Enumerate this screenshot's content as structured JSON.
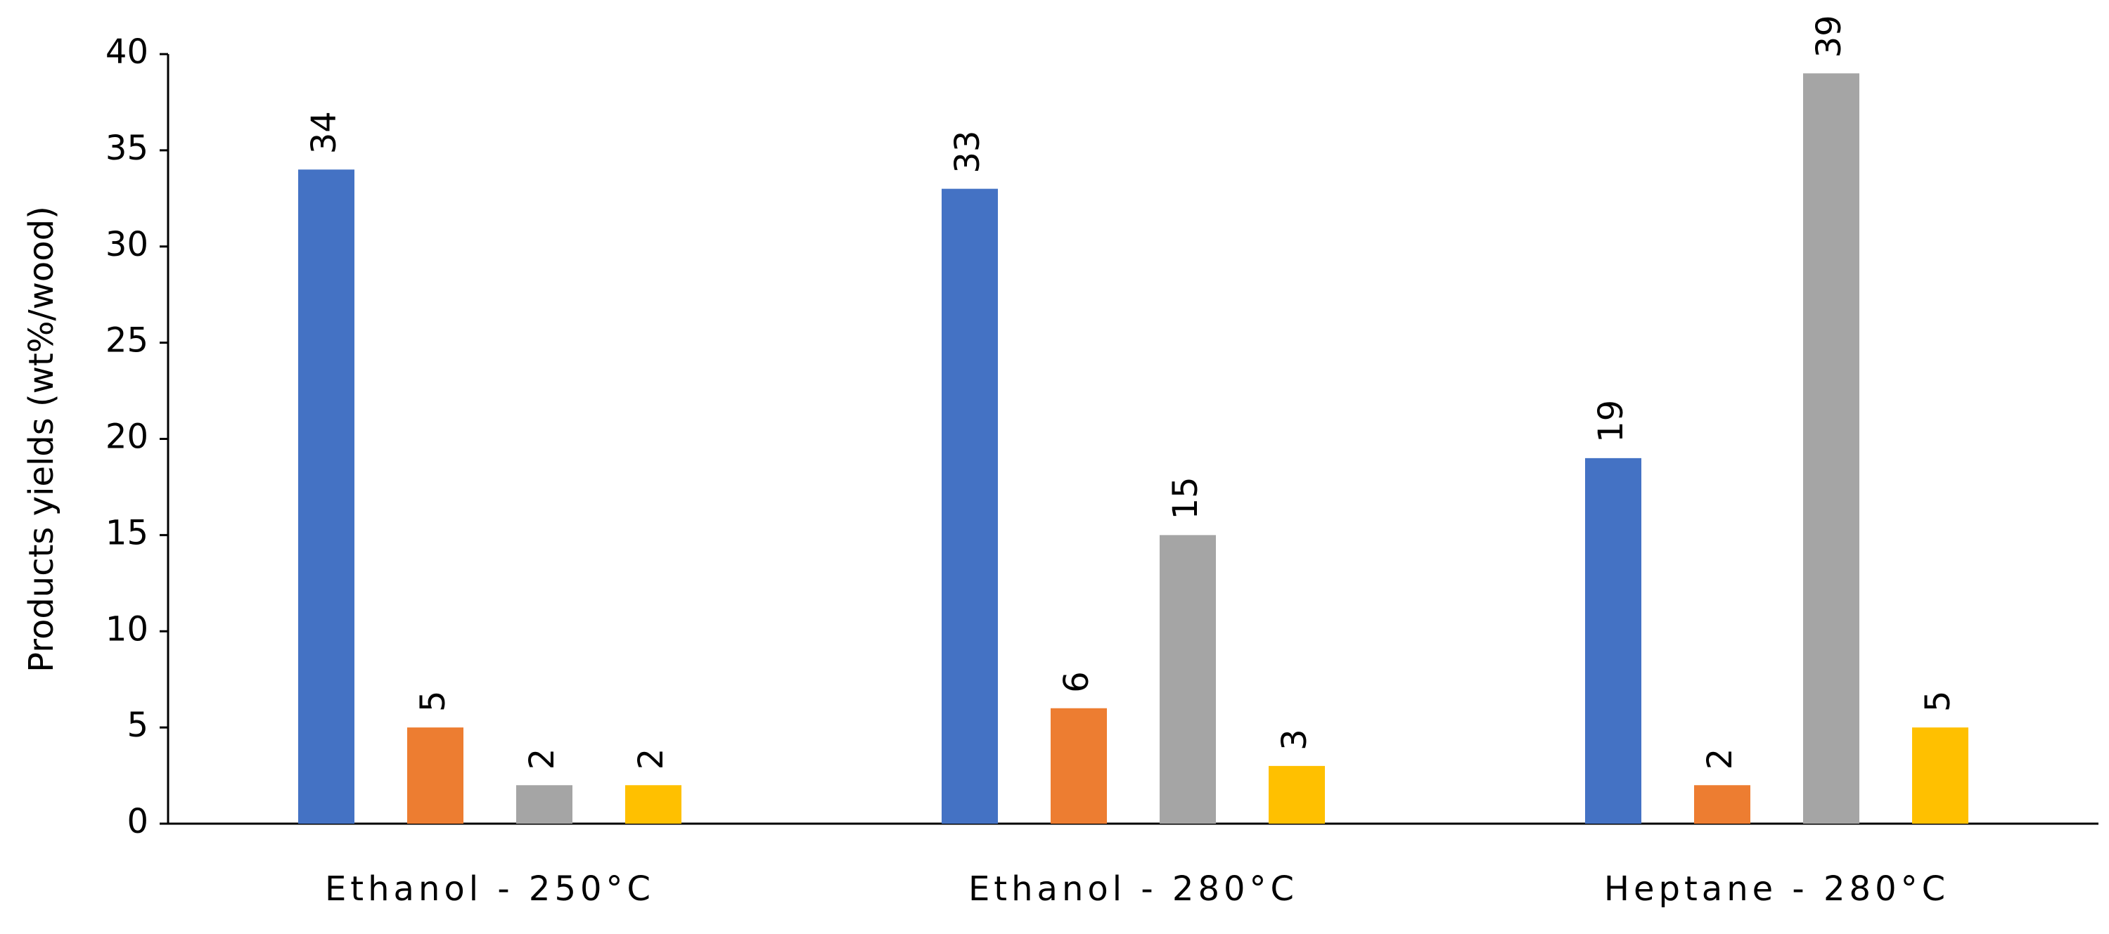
{
  "chart_data": {
    "type": "bar",
    "y_label": "Products yields (wt%/wood)",
    "categories": [
      "Ethanol - 250°C",
      "Ethanol - 280°C",
      "Heptane - 280°C"
    ],
    "series": [
      {
        "color": "#4472c4",
        "values": [
          34,
          33,
          19
        ]
      },
      {
        "color": "#ed7d31",
        "values": [
          5,
          6,
          2
        ]
      },
      {
        "color": "#a5a5a5",
        "values": [
          2,
          15,
          39
        ]
      },
      {
        "color": "#ffc000",
        "values": [
          2,
          3,
          5
        ]
      }
    ],
    "ylim": [
      0,
      40
    ],
    "yticks": [
      0,
      5,
      10,
      15,
      20,
      25,
      30,
      35,
      40
    ],
    "grid": false
  }
}
